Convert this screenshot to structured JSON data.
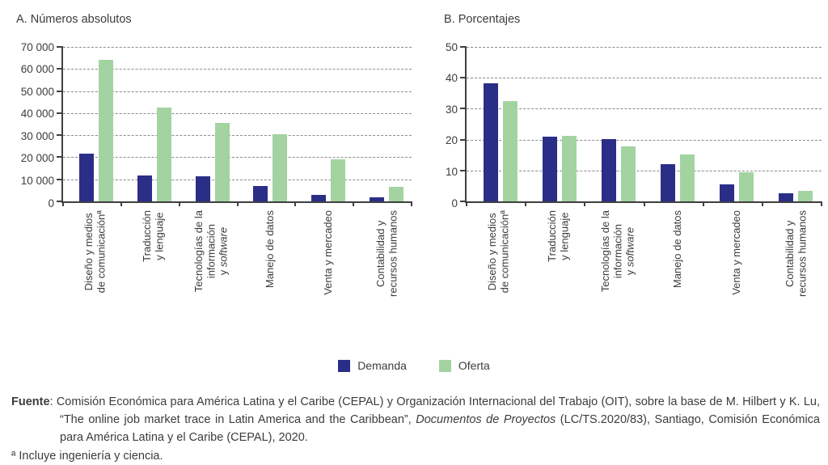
{
  "colors": {
    "demanda": "#2b2e87",
    "oferta": "#a3d3a1",
    "axis": "#3f3f3f",
    "grid": "#8c8c8c",
    "text": "#3c3c3c"
  },
  "legend": {
    "items": [
      {
        "label": "Demanda",
        "color": "#2b2e87"
      },
      {
        "label": "Oferta",
        "color": "#a3d3a1"
      }
    ]
  },
  "chart_data": [
    {
      "type": "bar",
      "title": "A. Números absolutos",
      "ylabel": "",
      "xlabel": "",
      "ylim": [
        0,
        70000
      ],
      "ytick_step": 10000,
      "ytick_labels": [
        "0",
        "10 000",
        "20 000",
        "30 000",
        "40 000",
        "50 000",
        "60 000",
        "70 000"
      ],
      "grid": "horizontal-dashed",
      "legend_position": "bottom-shared",
      "categories": [
        {
          "label": "Diseño y medios de comunicaciónª",
          "lines": [
            "Diseño y medios",
            "de comunicaciónª"
          ]
        },
        {
          "label": "Traducción y lenguaje",
          "lines": [
            "Traducción",
            "y lenguaje"
          ]
        },
        {
          "label": "Tecnologías de la información y software",
          "lines": [
            "Tecnologías de la",
            "información",
            "y software"
          ],
          "italic": "software"
        },
        {
          "label": "Manejo de datos",
          "lines": [
            "Manejo de datos"
          ]
        },
        {
          "label": "Venta y mercadeo",
          "lines": [
            "Venta y mercadeo"
          ]
        },
        {
          "label": "Contabilidad y recursos humanos",
          "lines": [
            "Contabilidad y",
            "recursos humanos"
          ]
        }
      ],
      "series": [
        {
          "name": "Demanda",
          "values": [
            21500,
            11800,
            11400,
            6800,
            3000,
            1700
          ]
        },
        {
          "name": "Oferta",
          "values": [
            64300,
            42400,
            35400,
            30500,
            19000,
            6600
          ]
        }
      ]
    },
    {
      "type": "bar",
      "title": "B. Porcentajes",
      "ylabel": "",
      "xlabel": "",
      "ylim": [
        0,
        50
      ],
      "ytick_step": 10,
      "ytick_labels": [
        "0",
        "10",
        "20",
        "30",
        "40",
        "50"
      ],
      "grid": "horizontal-dashed",
      "legend_position": "bottom-shared",
      "categories": [
        {
          "label": "Diseño y medios de comunicaciónª",
          "lines": [
            "Diseño y medios",
            "de comunicaciónª"
          ]
        },
        {
          "label": "Traducción y lenguaje",
          "lines": [
            "Traducción",
            "y lenguaje"
          ]
        },
        {
          "label": "Tecnologías de la información y software",
          "lines": [
            "Tecnologías de la",
            "información",
            "y software"
          ],
          "italic": "software"
        },
        {
          "label": "Manejo de datos",
          "lines": [
            "Manejo de datos"
          ]
        },
        {
          "label": "Venta y mercadeo",
          "lines": [
            "Venta y mercadeo"
          ]
        },
        {
          "label": "Contabilidad y recursos humanos",
          "lines": [
            "Contabilidad y",
            "recursos humanos"
          ]
        }
      ],
      "series": [
        {
          "name": "Demanda",
          "values": [
            38.3,
            21.0,
            20.1,
            12.0,
            5.5,
            2.6
          ]
        },
        {
          "name": "Oferta",
          "values": [
            32.5,
            21.2,
            17.8,
            15.2,
            9.3,
            3.3
          ]
        }
      ]
    }
  ],
  "footer": {
    "source_segments": [
      {
        "text": "Fuente",
        "bold": true
      },
      {
        "text": ": Comisión Económica para América Latina y el Caribe (CEPAL) y Organización Internacional del Trabajo (OIT), sobre la base de M. Hilbert y K. Lu, “The online job market trace in Latin America and the Caribbean”, "
      },
      {
        "text": "Documentos de Proyectos",
        "italic": true
      },
      {
        "text": " (LC/TS.2020/83), Santiago, Comisión Económica para América Latina y el Caribe (CEPAL), 2020."
      }
    ],
    "footnote": "ª Incluye ingeniería y ciencia."
  }
}
